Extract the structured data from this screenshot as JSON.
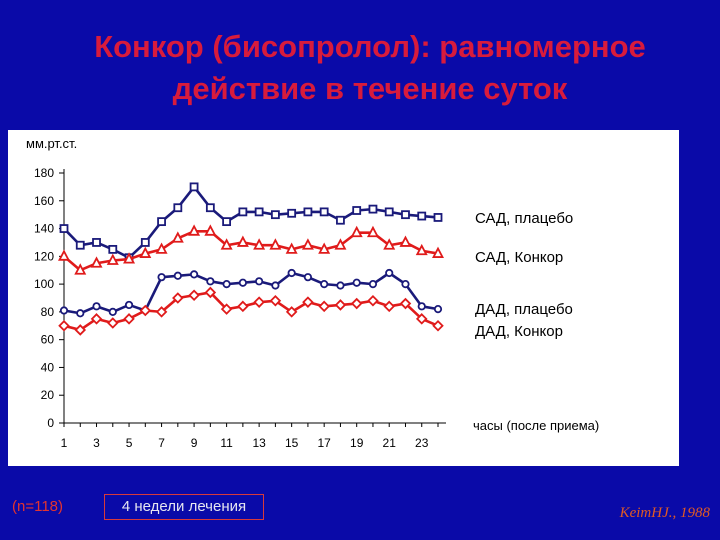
{
  "title_line1": "Конкор (бисопролол): равномерное",
  "title_line2": "действие в течение суток",
  "footer": {
    "n_label": "(n=118)",
    "duration": "4 недели лечения",
    "citation": "KeimHJ., 1988"
  },
  "chart_data": {
    "type": "line",
    "ylabel": "мм.рт.ст.",
    "xlabel": "часы (после приема)",
    "ylim": [
      0,
      180
    ],
    "yticks": [
      0,
      20,
      40,
      60,
      80,
      100,
      120,
      140,
      160,
      180
    ],
    "xlim": [
      1,
      24
    ],
    "xticks": [
      1,
      3,
      5,
      7,
      9,
      11,
      13,
      15,
      17,
      19,
      21,
      23
    ],
    "x": [
      1,
      2,
      3,
      4,
      5,
      6,
      7,
      8,
      9,
      10,
      11,
      12,
      13,
      14,
      15,
      16,
      17,
      18,
      19,
      20,
      21,
      22,
      23,
      24
    ],
    "series": [
      {
        "name": "САД, плацебо",
        "color": "#1a1a7a",
        "marker": "square",
        "values": [
          140,
          128,
          130,
          125,
          119,
          130,
          145,
          155,
          170,
          155,
          145,
          152,
          152,
          150,
          151,
          152,
          152,
          146,
          153,
          154,
          152,
          150,
          149,
          148
        ]
      },
      {
        "name": "САД, Конкор",
        "color": "#e01b1b",
        "marker": "triangle",
        "values": [
          120,
          110,
          115,
          117,
          118,
          122,
          125,
          133,
          138,
          138,
          128,
          130,
          128,
          128,
          125,
          128,
          125,
          128,
          137,
          137,
          128,
          130,
          124,
          122
        ]
      },
      {
        "name": "ДАД, плацебо",
        "color": "#1a1a7a",
        "marker": "circle",
        "values": [
          81,
          79,
          84,
          80,
          85,
          81,
          105,
          106,
          107,
          102,
          100,
          101,
          102,
          99,
          108,
          105,
          100,
          99,
          101,
          100,
          108,
          100,
          84,
          82
        ]
      },
      {
        "name": "ДАД, Конкор",
        "color": "#e01b1b",
        "marker": "diamond",
        "values": [
          70,
          67,
          75,
          72,
          75,
          81,
          80,
          90,
          92,
          94,
          82,
          84,
          87,
          88,
          80,
          87,
          84,
          85,
          86,
          88,
          84,
          86,
          75,
          70
        ]
      }
    ]
  }
}
